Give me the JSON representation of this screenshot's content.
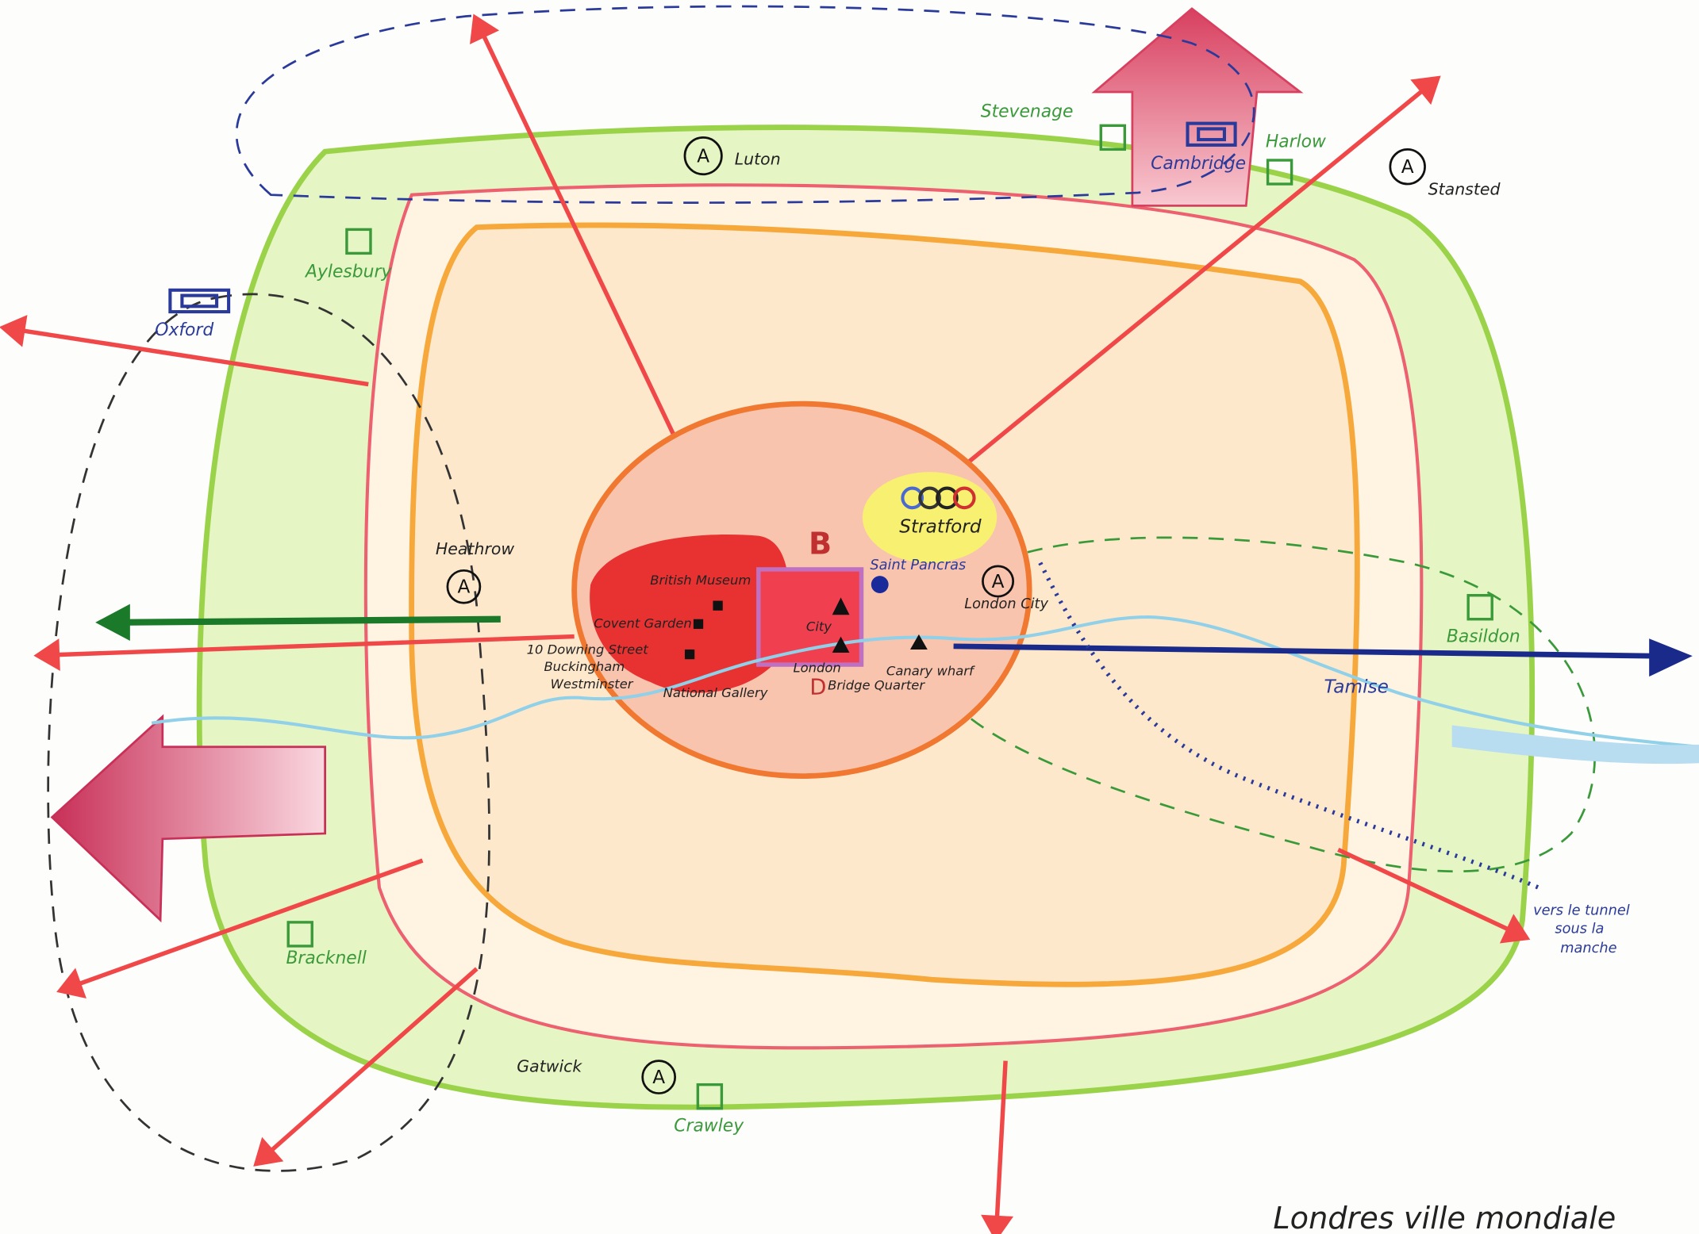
{
  "title": "Londres ville mondiale",
  "symbols": {
    "airport": "A",
    "business_district": "B",
    "docklands": "D"
  },
  "labels": {
    "luton": "Luton",
    "stevenage": "Stevenage",
    "cambridge": "Cambridge",
    "harlow": "Harlow",
    "stansted": "Stansted",
    "aylesbury": "Aylesbury",
    "oxford": "Oxford",
    "heathrow": "Heathrow",
    "british_museum": "British Museum",
    "covent_garden": "Covent Garden",
    "downing_street": "10 Downing Street",
    "buckingham": "Buckingham",
    "westminster": "Westminster",
    "national_gallery": "National Gallery",
    "city": "City",
    "london": "London",
    "bridge_quarter": "Bridge Quarter",
    "canary_wharf": "Canary wharf",
    "saint_pancras": "Saint Pancras",
    "stratford": "Stratford",
    "london_city": "London City",
    "basildon": "Basildon",
    "tamise": "Tamise",
    "tunnel_1": "vers le tunnel",
    "tunnel_2": "sous la",
    "tunnel_3": "manche",
    "bracknell": "Bracknell",
    "gatwick": "Gatwick",
    "crawley": "Crawley"
  }
}
